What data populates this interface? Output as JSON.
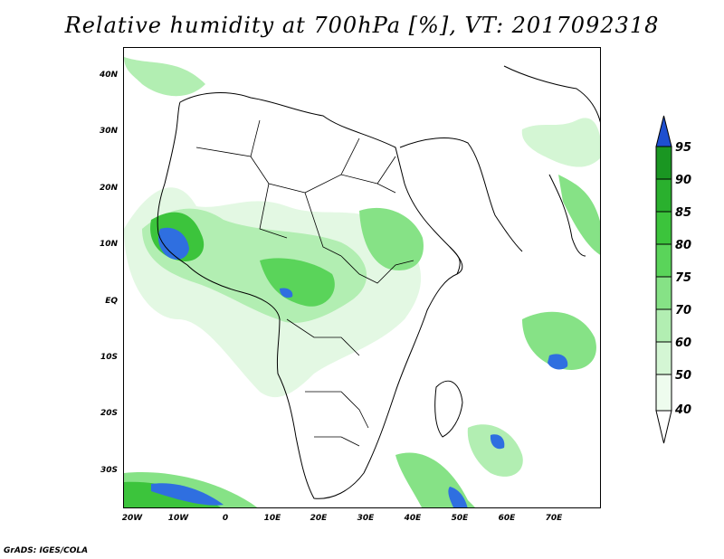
{
  "title": "Relative humidity at 700hPa [%], VT: 2017092318",
  "credit": "GrADS: IGES/COLA",
  "map": {
    "lat_labels": [
      "40N",
      "30N",
      "20N",
      "10N",
      "EQ",
      "10S",
      "20S",
      "30S"
    ],
    "lon_labels": [
      "20W",
      "10W",
      "0",
      "10E",
      "20E",
      "30E",
      "40E",
      "50E",
      "60E",
      "70E"
    ]
  },
  "colorbar": {
    "levels": [
      "95",
      "90",
      "85",
      "80",
      "75",
      "70",
      "60",
      "50",
      "40"
    ],
    "colors": [
      "#1e4fd0",
      "#1a9622",
      "#2ab02e",
      "#3cc43c",
      "#5ad45a",
      "#86e286",
      "#b2eeb2",
      "#d4f6d4",
      "#eefcee",
      "#ffffff"
    ]
  }
}
